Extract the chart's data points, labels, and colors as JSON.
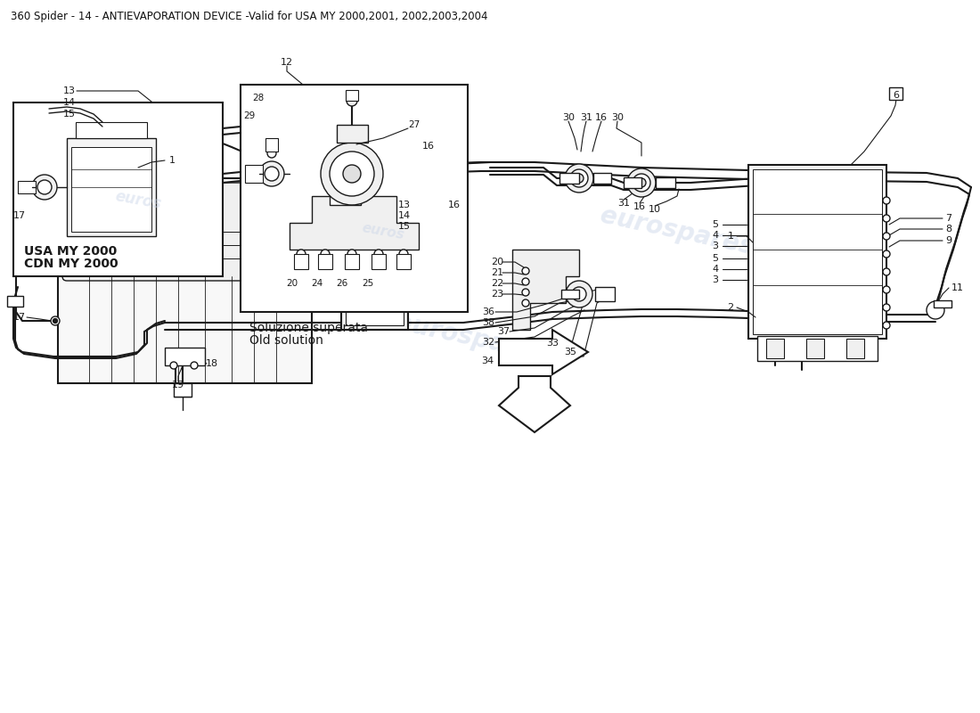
{
  "title": "360 Spider - 14 - ANTIEVAPORATION DEVICE -Valid for USA MY 2000,2001, 2002,2003,2004",
  "title_fontsize": 8.5,
  "bg_color": "#ffffff",
  "line_color": "#1a1a1a",
  "watermark_color": "#c8d4e8",
  "watermark_alpha": 0.45,
  "subtitle_usa": "USA MY 2000\nCDN MY 2000",
  "subtitle_old": "Soluzione superata\nOld solution",
  "label_fontsize": 8
}
